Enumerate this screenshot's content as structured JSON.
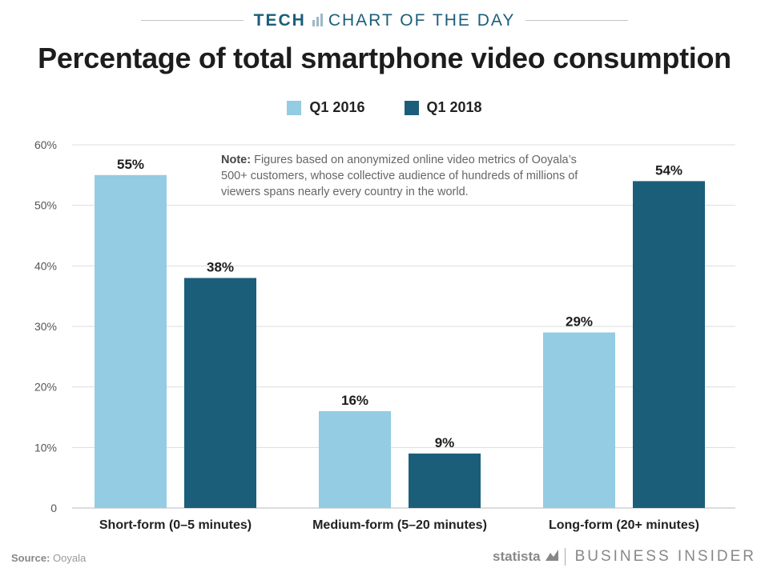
{
  "header": {
    "section_label": "TECH",
    "series_label": "CHART OF THE DAY"
  },
  "chart_data": {
    "type": "bar",
    "title": "Percentage of total smartphone video consumption",
    "categories": [
      "Short-form (0–5 minutes)",
      "Medium-form (5–20 minutes)",
      "Long-form (20+ minutes)"
    ],
    "series": [
      {
        "name": "Q1 2016",
        "values": [
          55,
          16,
          29
        ],
        "labels": [
          "55%",
          "16%",
          "29%"
        ],
        "color": "#93cce3"
      },
      {
        "name": "Q1 2018",
        "values": [
          38,
          9,
          54
        ],
        "labels": [
          "38%",
          "9%",
          "54%"
        ],
        "color": "#1b5e7a"
      }
    ],
    "ylim": [
      0,
      60
    ],
    "yticks": [
      0,
      10,
      20,
      30,
      40,
      50,
      60
    ],
    "ytick_labels": [
      "0",
      "10%",
      "20%",
      "30%",
      "40%",
      "50%",
      "60%"
    ],
    "grid": true,
    "legend_position": "top-center",
    "xlabel": "",
    "ylabel": ""
  },
  "note": {
    "label": "Note:",
    "text": "Figures based on anonymized online video metrics of Ooyala’s 500+ customers, whose collective audience of hundreds of millions of viewers spans nearly every country in the world."
  },
  "footer": {
    "source_label": "Source:",
    "source_value": "Ooyala",
    "statista": "statista",
    "publisher": "BUSINESS INSIDER"
  },
  "colors": {
    "q1_2016": "#93cce3",
    "q1_2018": "#1b5e7a",
    "grid": "#dddddd",
    "axis_text": "#555555"
  }
}
